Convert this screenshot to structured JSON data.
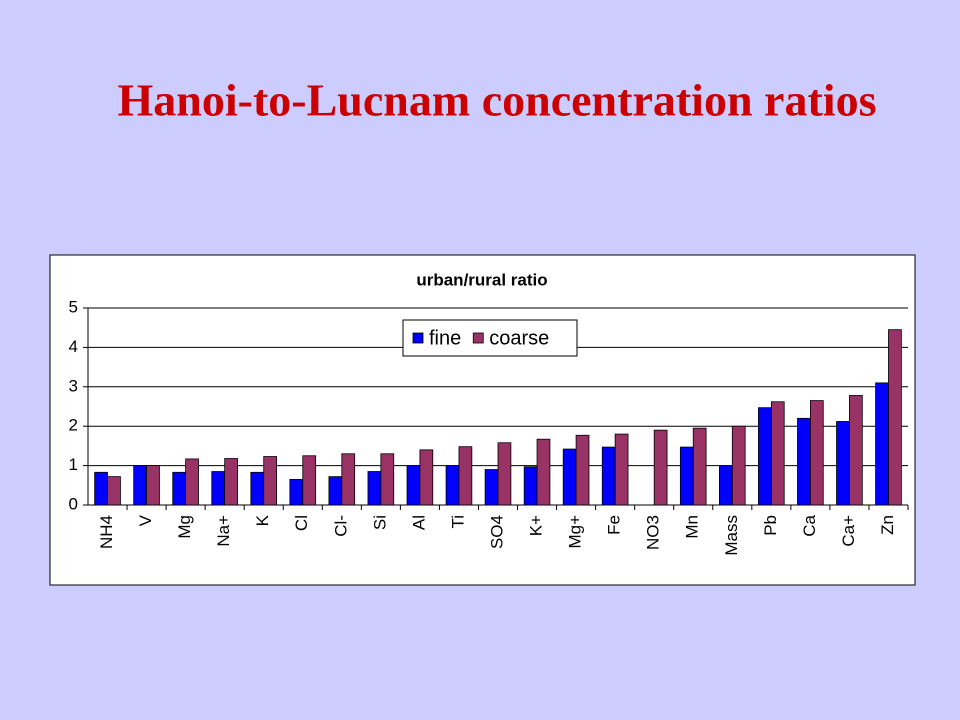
{
  "title": "Hanoi-to-Lucnam concentration ratios",
  "chart_data": {
    "type": "bar",
    "title": "urban/rural ratio",
    "categories": [
      "NH4",
      "V",
      "Mg",
      "Na+",
      "K",
      "Cl",
      "Cl-",
      "Si",
      "Al",
      "Ti",
      "SO4",
      "K+",
      "Mg+",
      "Fe",
      "NO3",
      "Mn",
      "Mass",
      "Pb",
      "Ca",
      "Ca+",
      "Zn"
    ],
    "series": [
      {
        "name": "fine",
        "color": "#0000ff",
        "values": [
          0.83,
          1.0,
          0.83,
          0.85,
          0.83,
          0.65,
          0.72,
          0.85,
          1.0,
          1.0,
          0.9,
          0.97,
          1.42,
          1.47,
          null,
          1.47,
          1.0,
          2.47,
          2.2,
          2.12,
          3.1
        ]
      },
      {
        "name": "coarse",
        "color": "#993366",
        "values": [
          0.72,
          1.0,
          1.17,
          1.18,
          1.23,
          1.25,
          1.3,
          1.3,
          1.4,
          1.48,
          1.58,
          1.67,
          1.77,
          1.8,
          1.9,
          1.95,
          2.0,
          2.62,
          2.65,
          2.78,
          4.45
        ]
      }
    ],
    "ylim": [
      0,
      5
    ],
    "yticks": [
      0,
      1,
      2,
      3,
      4,
      5
    ],
    "grid": true,
    "legend": "top"
  }
}
